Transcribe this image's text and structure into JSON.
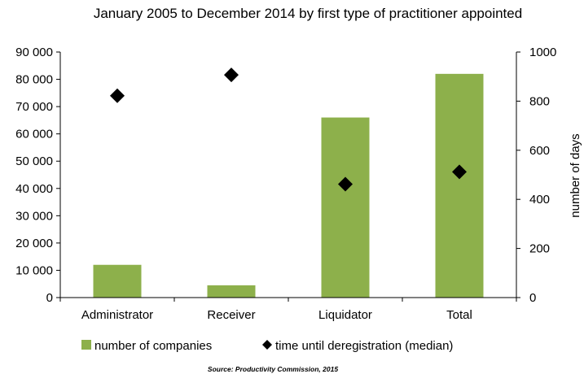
{
  "chart_data": {
    "type": "bar",
    "title": "January 2005 to December 2014 by first type of practitioner appointed",
    "categories": [
      "Administrator",
      "Receiver",
      "Liquidator",
      "Total"
    ],
    "series": [
      {
        "name": "number of companies",
        "type": "bar",
        "axis": "left",
        "color": "#8db04b",
        "values": [
          12000,
          4500,
          66000,
          82000
        ]
      },
      {
        "name": "time until deregistration (median)",
        "type": "scatter",
        "marker": "diamond",
        "axis": "right",
        "color": "#000000",
        "values": [
          822,
          907,
          462,
          512
        ]
      }
    ],
    "ylim_left": [
      0,
      90000
    ],
    "yticks_left": [
      "0",
      "10 000",
      "20 000",
      "30 000",
      "40 000",
      "50 000",
      "60 000",
      "70 000",
      "80 000",
      "90 000"
    ],
    "ylim_right": [
      0,
      1000
    ],
    "yticks_right": [
      "0",
      "200",
      "400",
      "600",
      "800",
      "1000"
    ],
    "ylabel_right": "number of days",
    "ylabel_left": "",
    "xlabel": "",
    "grid": false,
    "legend_position": "bottom",
    "source": "Source: Productivity Commission, 2015"
  }
}
